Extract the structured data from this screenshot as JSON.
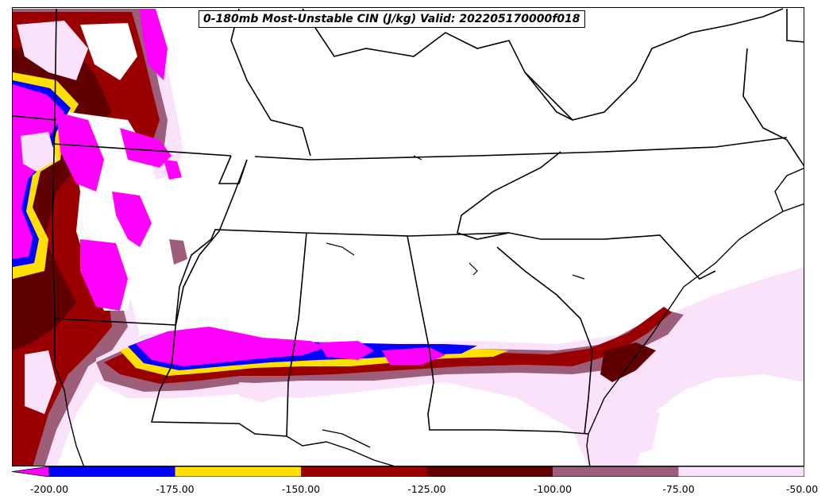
{
  "title": "0-180mb Most-Unstable CIN (J/kg) Valid: 202205170000f018",
  "colorbar": {
    "ticks": [
      "-200.00",
      "-175.00",
      "-150.00",
      "-125.00",
      "-100.00",
      "-75.00",
      "-50.00"
    ],
    "bins": [
      {
        "from": -200,
        "to": -175,
        "color": "#0000ff"
      },
      {
        "from": -175,
        "to": -150,
        "color": "#ffe000"
      },
      {
        "from": -150,
        "to": -125,
        "color": "#9a0000"
      },
      {
        "from": -125,
        "to": -100,
        "color": "#600000"
      },
      {
        "from": -100,
        "to": -75,
        "color": "#9c5e78"
      },
      {
        "from": -75,
        "to": -50,
        "color": "#fbe2fb"
      }
    ],
    "extend_below_color": "#ff00ff"
  },
  "colors": {
    "magenta": "#ff00ff",
    "blue": "#0000ff",
    "yellow": "#ffe000",
    "dark_red": "#9a0000",
    "maroon": "#600000",
    "mauve": "#9c5e78",
    "light_pink": "#fbe2fb",
    "boundary": "#000000"
  }
}
